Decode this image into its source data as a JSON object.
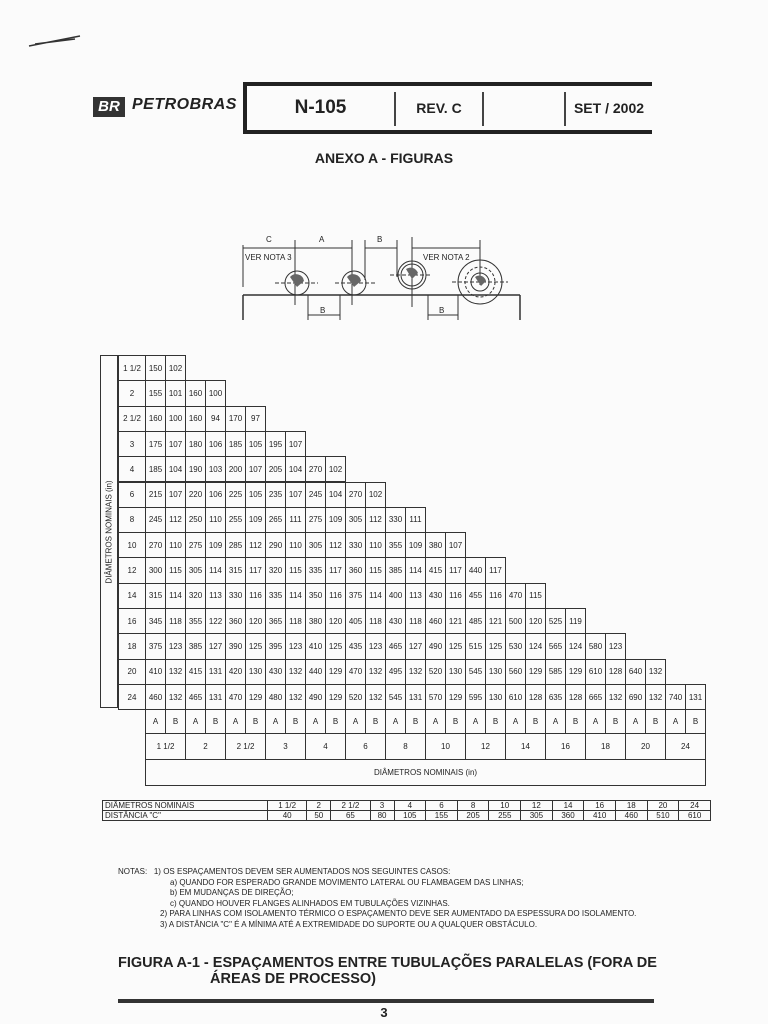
{
  "header": {
    "logo": "BR",
    "company": "PETROBRAS",
    "doc_number": "N-105",
    "revision": "REV. C",
    "blank": "",
    "date": "SET / 2002"
  },
  "section_title": "ANEXO A - FIGURAS",
  "diagram": {
    "label_c": "C",
    "label_a": "A",
    "label_b_top": "B",
    "label_b1": "B",
    "label_b2": "B",
    "note3": "VER NOTA 3",
    "note2": "VER NOTA 2"
  },
  "spacing_table": {
    "row_axis_label": "DIÂMETROS NOMINAIS (in)",
    "col_axis_label": "DIÂMETROS NOMINAIS (in)",
    "sublabels": [
      "A",
      "B"
    ],
    "diameters": [
      "1 1/2",
      "2",
      "2 1/2",
      "3",
      "4",
      "6",
      "8",
      "10",
      "12",
      "14",
      "16",
      "18",
      "20",
      "24"
    ],
    "rows": [
      [
        "150",
        "102"
      ],
      [
        "155",
        "101",
        "160",
        "100"
      ],
      [
        "160",
        "100",
        "160",
        "94",
        "170",
        "97"
      ],
      [
        "175",
        "107",
        "180",
        "106",
        "185",
        "105",
        "195",
        "107"
      ],
      [
        "185",
        "104",
        "190",
        "103",
        "200",
        "107",
        "205",
        "104",
        "270",
        "102"
      ],
      [
        "215",
        "107",
        "220",
        "106",
        "225",
        "105",
        "235",
        "107",
        "245",
        "104",
        "270",
        "102"
      ],
      [
        "245",
        "112",
        "250",
        "110",
        "255",
        "109",
        "265",
        "111",
        "275",
        "109",
        "305",
        "112",
        "330",
        "111"
      ],
      [
        "270",
        "110",
        "275",
        "109",
        "285",
        "112",
        "290",
        "110",
        "305",
        "112",
        "330",
        "110",
        "355",
        "109",
        "380",
        "107"
      ],
      [
        "300",
        "115",
        "305",
        "114",
        "315",
        "117",
        "320",
        "115",
        "335",
        "117",
        "360",
        "115",
        "385",
        "114",
        "415",
        "117",
        "440",
        "117"
      ],
      [
        "315",
        "114",
        "320",
        "113",
        "330",
        "116",
        "335",
        "114",
        "350",
        "116",
        "375",
        "114",
        "400",
        "113",
        "430",
        "116",
        "455",
        "116",
        "470",
        "115"
      ],
      [
        "345",
        "118",
        "355",
        "122",
        "360",
        "120",
        "365",
        "118",
        "380",
        "120",
        "405",
        "118",
        "430",
        "118",
        "460",
        "121",
        "485",
        "121",
        "500",
        "120",
        "525",
        "119"
      ],
      [
        "375",
        "123",
        "385",
        "127",
        "390",
        "125",
        "395",
        "123",
        "410",
        "125",
        "435",
        "123",
        "465",
        "127",
        "490",
        "125",
        "515",
        "125",
        "530",
        "124",
        "565",
        "124",
        "580",
        "123"
      ],
      [
        "410",
        "132",
        "415",
        "131",
        "420",
        "130",
        "430",
        "132",
        "440",
        "129",
        "470",
        "132",
        "495",
        "132",
        "520",
        "130",
        "545",
        "130",
        "560",
        "129",
        "585",
        "129",
        "610",
        "128",
        "640",
        "132"
      ],
      [
        "460",
        "132",
        "465",
        "131",
        "470",
        "129",
        "480",
        "132",
        "490",
        "129",
        "520",
        "132",
        "545",
        "131",
        "570",
        "129",
        "595",
        "130",
        "610",
        "128",
        "635",
        "128",
        "665",
        "132",
        "690",
        "132",
        "740",
        "131"
      ]
    ]
  },
  "distance_table": {
    "row1_label": "DIÂMETROS NOMINAIS",
    "row2_label": "DISTÂNCIA \"C\"",
    "diameters": [
      "1 1/2",
      "2",
      "2 1/2",
      "3",
      "4",
      "6",
      "8",
      "10",
      "12",
      "14",
      "16",
      "18",
      "20",
      "24"
    ],
    "distances": [
      "40",
      "50",
      "65",
      "80",
      "105",
      "155",
      "205",
      "255",
      "305",
      "360",
      "410",
      "460",
      "510",
      "610"
    ]
  },
  "notes": {
    "heading": "NOTAS:",
    "n1": "1) OS ESPAÇAMENTOS DEVEM SER AUMENTADOS NOS SEGUINTES CASOS:",
    "n1a": "a) QUANDO FOR ESPERADO GRANDE MOVIMENTO LATERAL OU FLAMBAGEM DAS LINHAS;",
    "n1b": "b) EM MUDANÇAS DE DIREÇÃO;",
    "n1c": "c) QUANDO HOUVER FLANGES ALINHADOS EM TUBULAÇÕES VIZINHAS.",
    "n2": "2) PARA LINHAS COM ISOLAMENTO TÉRMICO O ESPAÇAMENTO DEVE SER AUMENTADO DA ESPESSURA DO ISOLAMENTO.",
    "n3": "3) A DISTÂNCIA \"C\" É A MÍNIMA ATÉ A EXTREMIDADE DO SUPORTE OU A QUALQUER OBSTÁCULO."
  },
  "caption": {
    "line1": "FIGURA A-1 - ESPAÇAMENTOS ENTRE TUBULAÇÕES PARALELAS (FORA DE",
    "line2": "ÁREAS DE PROCESSO)"
  },
  "page_number": "3"
}
